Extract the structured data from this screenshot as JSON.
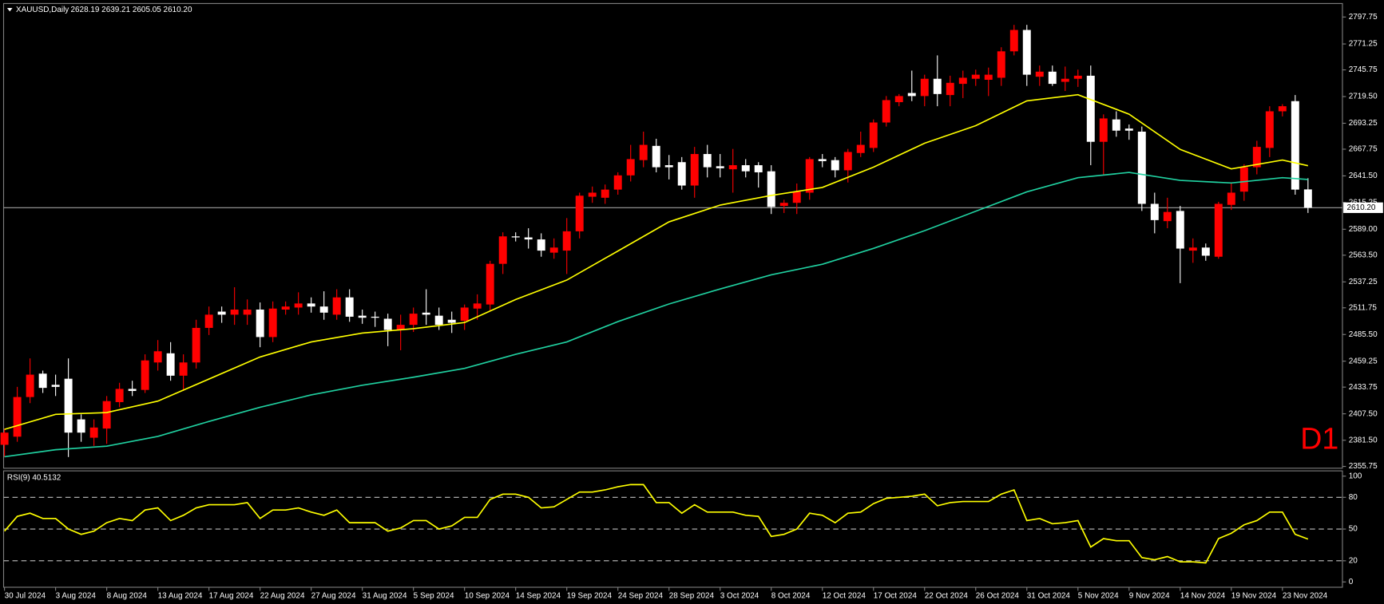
{
  "chart_data": {
    "type": "candlestick",
    "title": "XAUUSD,Daily",
    "ohlc_text": "2628.19 2639.21 2605.05 2610.20",
    "watermark": "D1",
    "categories": [
      "30 Jul 2024",
      null,
      null,
      null,
      "3 Aug 2024",
      null,
      null,
      null,
      "8 Aug 2024",
      null,
      null,
      null,
      "13 Aug 2024",
      null,
      null,
      null,
      "17 Aug 2024",
      null,
      null,
      null,
      "22 Aug 2024",
      null,
      null,
      null,
      "27 Aug 2024",
      null,
      null,
      null,
      "31 Aug 2024",
      null,
      null,
      null,
      "5 Sep 2024",
      null,
      null,
      null,
      "10 Sep 2024",
      null,
      null,
      null,
      "14 Sep 2024",
      null,
      null,
      null,
      "19 Sep 2024",
      null,
      null,
      null,
      "24 Sep 2024",
      null,
      null,
      null,
      "28 Sep 2024",
      null,
      null,
      null,
      "3 Oct 2024",
      null,
      null,
      null,
      "8 Oct 2024",
      null,
      null,
      null,
      "12 Oct 2024",
      null,
      null,
      null,
      "17 Oct 2024",
      null,
      null,
      null,
      "22 Oct 2024",
      null,
      null,
      null,
      "26 Oct 2024",
      null,
      null,
      null,
      "31 Oct 2024",
      null,
      null,
      null,
      "5 Nov 2024",
      null,
      null,
      null,
      "9 Nov 2024",
      null,
      null,
      null,
      "14 Nov 2024",
      null,
      null,
      null,
      "19 Nov 2024",
      null,
      null,
      null,
      "23 Nov 2024",
      null,
      null
    ],
    "open": [
      2377,
      2385,
      2424,
      2447,
      2436,
      2442,
      2402,
      2384,
      2393,
      2419,
      2432,
      2431,
      2458,
      2467,
      2445,
      2458,
      2492,
      2508,
      2505,
      2505,
      2510,
      2483,
      2510,
      2512,
      2516,
      2513,
      2505,
      2522,
      2504,
      2503,
      2501,
      2490,
      2495,
      2507,
      2504,
      2500,
      2499,
      2511,
      2515,
      2555,
      2582,
      2581,
      2579,
      2566,
      2568,
      2587,
      2621,
      2620,
      2628,
      2642,
      2657,
      2671,
      2652,
      2655,
      2632,
      2663,
      2651,
      2648,
      2652,
      2652,
      2646,
      2612,
      2615,
      2625,
      2658,
      2657,
      2647,
      2664,
      2669,
      2694,
      2714,
      2723,
      2720,
      2737,
      2721,
      2732,
      2737,
      2736,
      2738,
      2764,
      2785,
      2739,
      2744,
      2734,
      2737,
      2740,
      2675,
      2697,
      2688,
      2685,
      2614,
      2597,
      2607,
      2568,
      2571,
      2562,
      2613,
      2626,
      2650,
      2669,
      2705,
      2715,
      2628.19
    ],
    "high": [
      2393,
      2434,
      2462,
      2450,
      2446,
      2462,
      2407,
      2402,
      2425,
      2438,
      2440,
      2466,
      2480,
      2478,
      2466,
      2500,
      2513,
      2513,
      2532,
      2520,
      2517,
      2518,
      2518,
      2527,
      2522,
      2528,
      2530,
      2530,
      2510,
      2508,
      2506,
      2505,
      2512,
      2530,
      2512,
      2508,
      2515,
      2525,
      2558,
      2586,
      2586,
      2590,
      2585,
      2580,
      2600,
      2625,
      2631,
      2633,
      2645,
      2672,
      2685,
      2678,
      2662,
      2660,
      2670,
      2672,
      2663,
      2668,
      2658,
      2655,
      2652,
      2618,
      2634,
      2660,
      2663,
      2660,
      2668,
      2685,
      2697,
      2720,
      2722,
      2745,
      2741,
      2760,
      2740,
      2745,
      2746,
      2748,
      2768,
      2790,
      2790,
      2750,
      2750,
      2749,
      2746,
      2750,
      2702,
      2705,
      2692,
      2690,
      2625,
      2620,
      2612,
      2580,
      2575,
      2616,
      2635,
      2653,
      2676,
      2710,
      2712,
      2721,
      2639.21
    ],
    "low": [
      2365,
      2380,
      2418,
      2428,
      2425,
      2365,
      2380,
      2376,
      2378,
      2414,
      2425,
      2428,
      2450,
      2440,
      2430,
      2452,
      2485,
      2497,
      2495,
      2495,
      2473,
      2478,
      2505,
      2505,
      2507,
      2500,
      2500,
      2498,
      2496,
      2493,
      2474,
      2470,
      2488,
      2495,
      2490,
      2487,
      2490,
      2500,
      2508,
      2545,
      2577,
      2570,
      2562,
      2560,
      2545,
      2580,
      2615,
      2614,
      2623,
      2636,
      2650,
      2645,
      2638,
      2628,
      2620,
      2640,
      2640,
      2625,
      2640,
      2630,
      2604,
      2605,
      2604,
      2618,
      2650,
      2640,
      2635,
      2660,
      2665,
      2690,
      2710,
      2715,
      2710,
      2710,
      2710,
      2718,
      2730,
      2720,
      2730,
      2760,
      2730,
      2730,
      2730,
      2725,
      2729,
      2652,
      2643,
      2680,
      2677,
      2607,
      2585,
      2590,
      2536,
      2556,
      2558,
      2560,
      2608,
      2617,
      2643,
      2660,
      2700,
      2623,
      2605.05
    ],
    "close": [
      2389,
      2424,
      2446,
      2433,
      2434,
      2389,
      2389,
      2394,
      2420,
      2432,
      2430,
      2460,
      2469,
      2445,
      2458,
      2492,
      2505,
      2505,
      2510,
      2510,
      2483,
      2511,
      2513,
      2516,
      2513,
      2507,
      2522,
      2503,
      2502,
      2502,
      2490,
      2495,
      2506,
      2505,
      2495,
      2497,
      2512,
      2516,
      2555,
      2582,
      2581,
      2579,
      2568,
      2571,
      2587,
      2622,
      2625,
      2628,
      2642,
      2658,
      2672,
      2650,
      2650,
      2632,
      2663,
      2650,
      2649,
      2652,
      2646,
      2645,
      2611,
      2615,
      2626,
      2658,
      2656,
      2647,
      2665,
      2672,
      2694,
      2716,
      2720,
      2720,
      2737,
      2722,
      2733,
      2738,
      2741,
      2741,
      2764,
      2785,
      2741,
      2744,
      2732,
      2737,
      2740,
      2675,
      2698,
      2686,
      2686,
      2614,
      2598,
      2606,
      2570,
      2571,
      2563,
      2614,
      2625,
      2650,
      2670,
      2705,
      2710,
      2628,
      2610.2
    ],
    "up_color": "#ff0000",
    "down_color": "#ffffff",
    "lines": [
      {
        "color": "#ffff00",
        "x": [
          0,
          4,
          8,
          12,
          16,
          20,
          24,
          28,
          32,
          36,
          40,
          44,
          48,
          52,
          56,
          60,
          64,
          68,
          72,
          76,
          80,
          84,
          88,
          92,
          96,
          100,
          102
        ],
        "values": [
          2392.2,
          2407,
          2408.7,
          2420,
          2441.7,
          2463.4,
          2478.2,
          2486.9,
          2491.2,
          2497.3,
          2519.9,
          2539,
          2567.6,
          2596.3,
          2612.8,
          2622.3,
          2630.1,
          2650.1,
          2673.6,
          2690.9,
          2715.3,
          2721.3,
          2702.2,
          2667.5,
          2648.4,
          2657.1,
          2651.5
        ]
      },
      {
        "color": "#20d0a0",
        "x": [
          0,
          4,
          8,
          12,
          16,
          20,
          24,
          28,
          32,
          36,
          40,
          44,
          48,
          52,
          56,
          60,
          64,
          68,
          72,
          76,
          80,
          84,
          88,
          92,
          96,
          100,
          102
        ],
        "values": [
          2365.3,
          2372.2,
          2375.7,
          2385.3,
          2400,
          2413.9,
          2426.1,
          2435.6,
          2443.5,
          2452.2,
          2466,
          2478.2,
          2498.2,
          2515.5,
          2530.3,
          2544.2,
          2554.6,
          2570.2,
          2587.6,
          2606.7,
          2625.8,
          2639.7,
          2644.9,
          2637.1,
          2634.5,
          2639.7,
          2638
        ]
      }
    ],
    "price_line": {
      "value": 2610.2,
      "label": "2610.20"
    },
    "ylim": [
      2354,
      2811
    ],
    "yticks": [
      2797.75,
      2771.25,
      2745.75,
      {
        "value": 2719.5,
        "label": "2719.50"
      },
      2693.25,
      2667.75,
      {
        "value": 2641.5,
        "label": "2641.50"
      },
      2615.25,
      {
        "value": 2589,
        "label": "2589.00"
      },
      {
        "value": 2563.5,
        "label": "2563.50"
      },
      2537.25,
      2511.75,
      {
        "value": 2485.5,
        "label": "2485.50"
      },
      2459.25,
      2433.75,
      {
        "value": 2407.5,
        "label": "2407.50"
      },
      {
        "value": 2381.5,
        "label": "2381.50"
      },
      2355.75
    ],
    "rsi": {
      "title": "RSI(9) 40.5132",
      "color": "#ffff00",
      "ylim": [
        -5,
        105
      ],
      "yticks": [
        100,
        80,
        50,
        20,
        0
      ],
      "levels": [
        80,
        50,
        20
      ],
      "values": [
        48,
        62,
        65,
        60,
        60,
        50,
        45,
        48,
        56,
        60,
        58,
        68,
        70,
        58,
        63,
        70,
        73,
        73,
        73,
        75,
        60,
        68,
        68,
        70,
        66,
        63,
        68,
        56,
        56,
        56,
        48,
        51,
        58,
        58,
        50,
        53,
        61,
        61,
        78,
        83,
        83,
        80,
        70,
        71,
        78,
        85,
        85,
        87,
        90,
        92,
        92,
        75,
        75,
        65,
        73,
        66,
        66,
        66,
        63,
        62,
        43,
        45,
        50,
        65,
        63,
        56,
        65,
        66,
        74,
        79,
        80,
        81,
        83,
        72,
        75,
        76,
        76,
        76,
        83,
        87,
        58,
        60,
        55,
        56,
        58,
        33,
        41,
        39,
        39,
        23,
        21,
        24,
        19,
        19,
        18,
        41,
        46,
        54,
        58,
        66,
        66,
        45,
        40.5132
      ]
    }
  }
}
